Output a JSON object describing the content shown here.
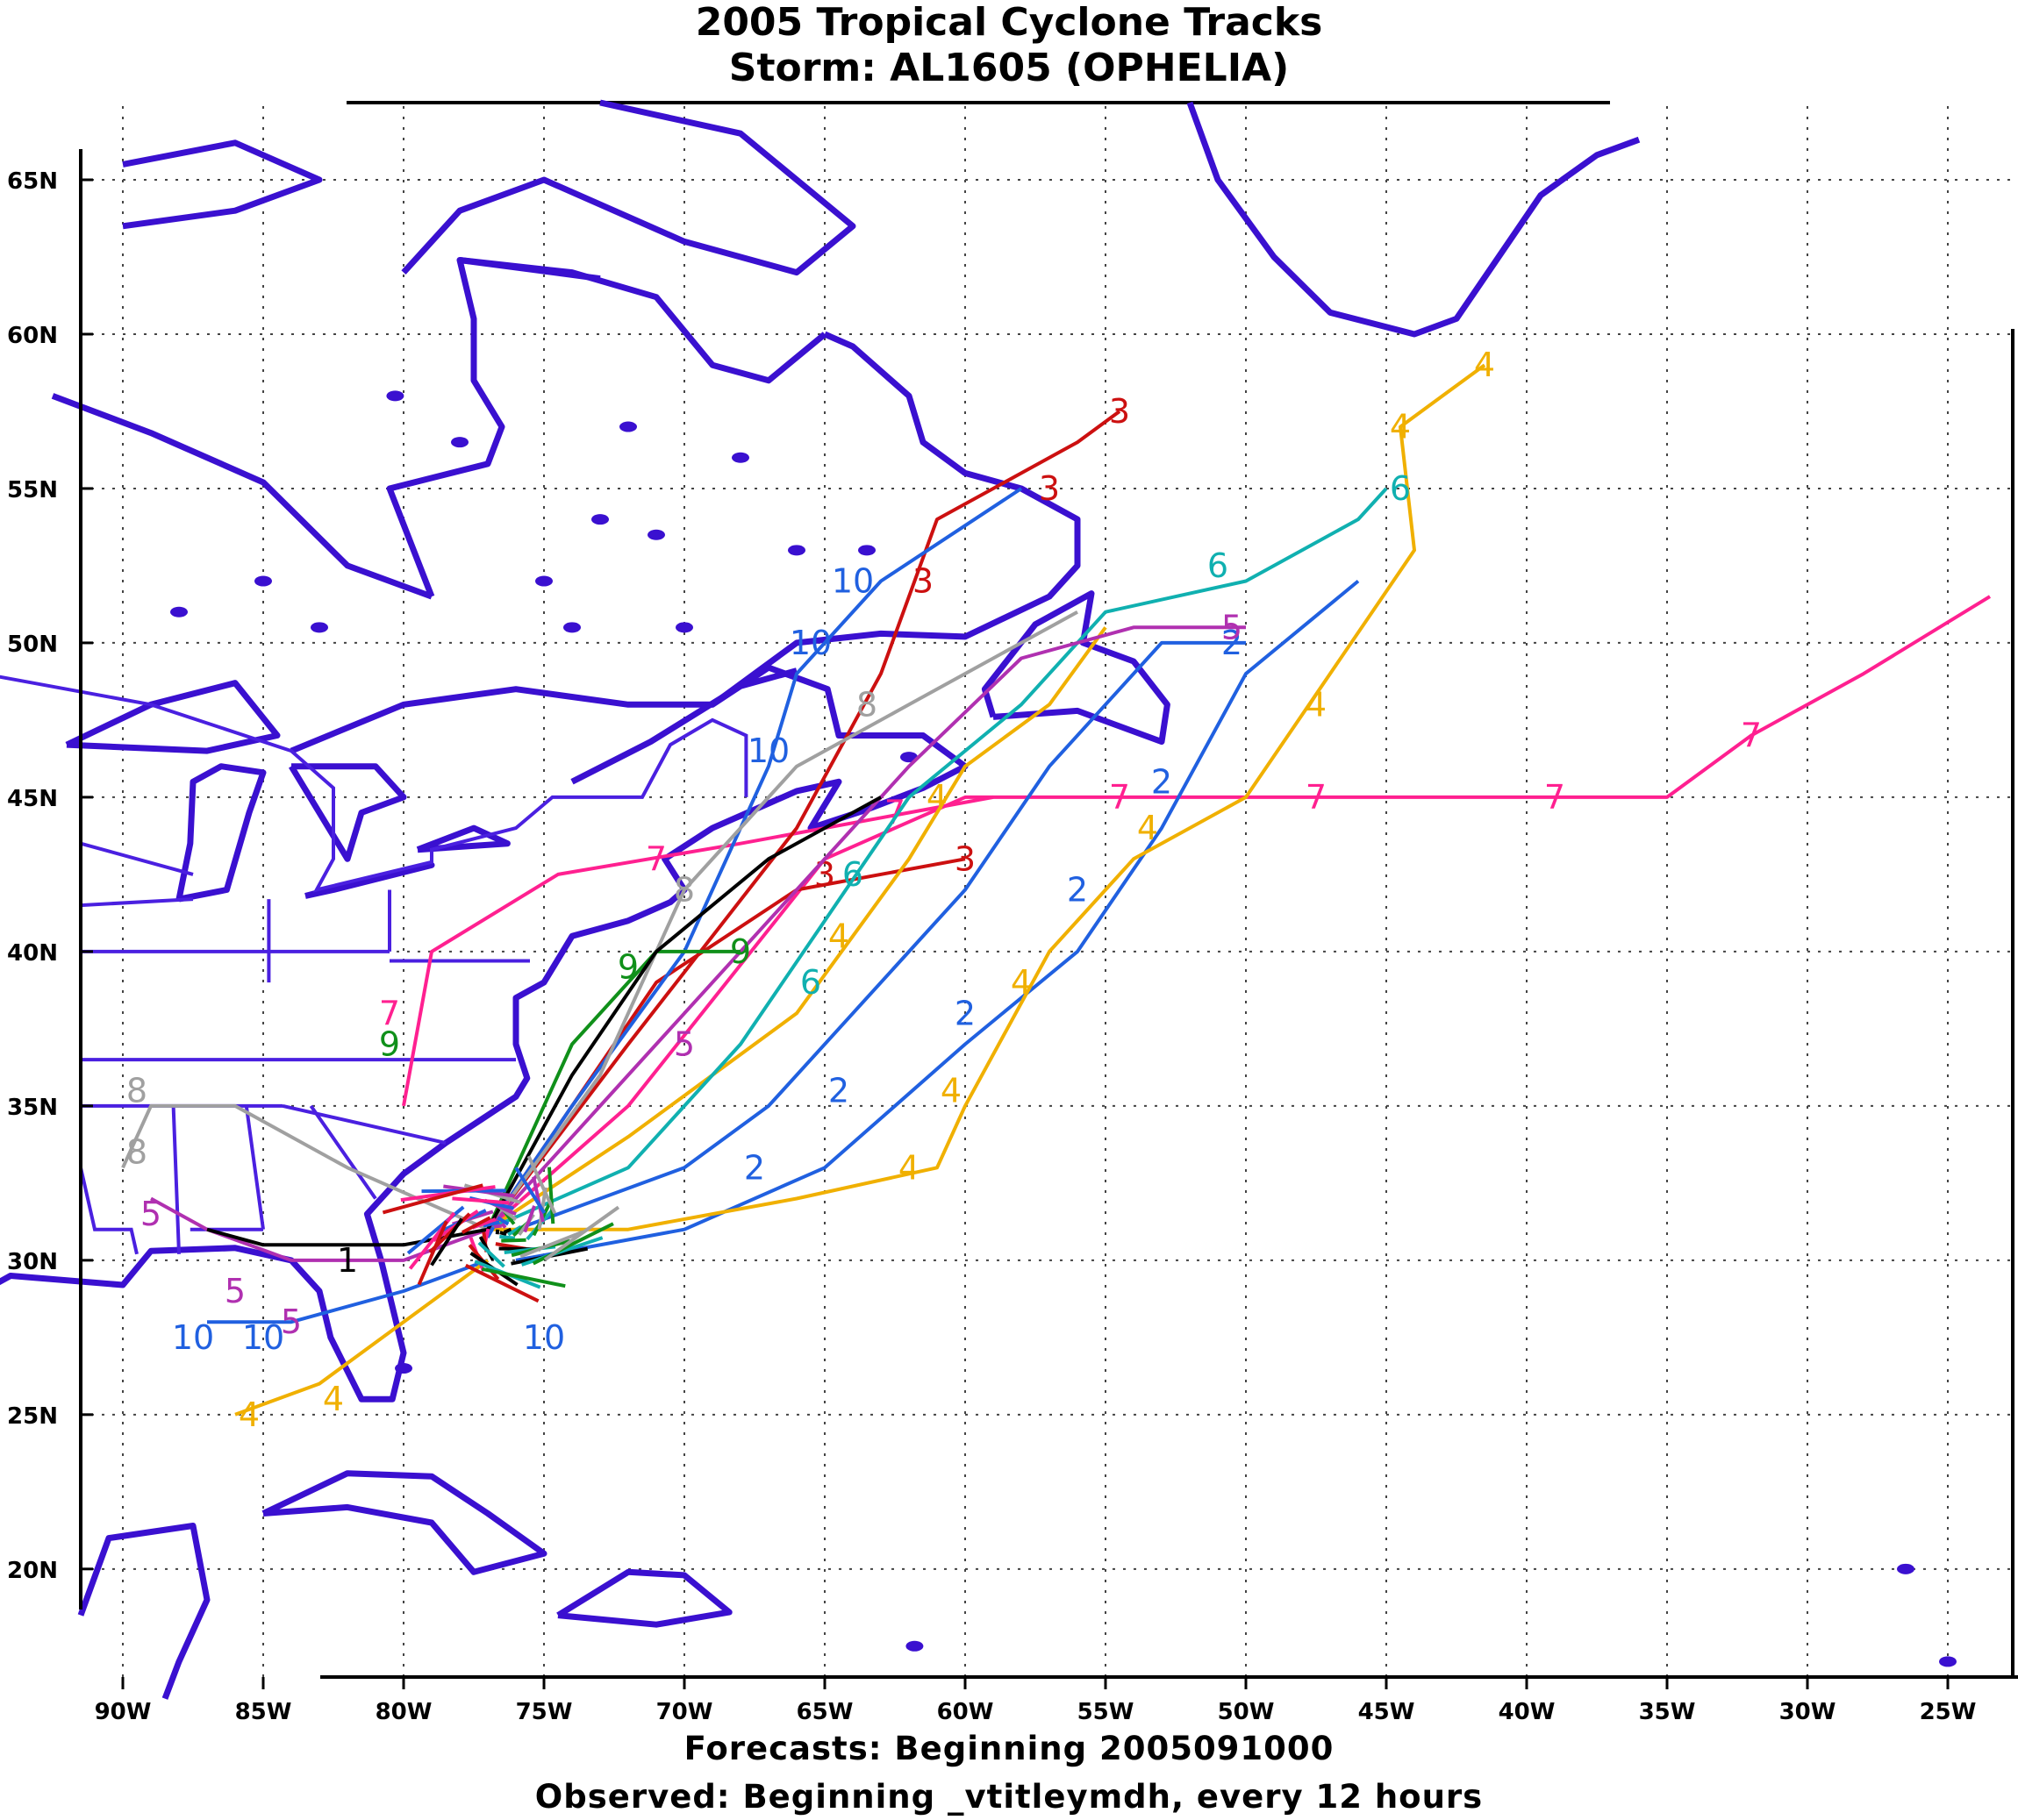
{
  "title": {
    "line1": "2005 Tropical Cyclone Tracks",
    "line2": "Storm: AL1605 (OPHELIA)"
  },
  "footer": {
    "forecasts": "Forecasts: Beginning 2005091000",
    "observed": "Observed: Beginning _vtitleymdh, every 12 hours"
  },
  "map": {
    "lon_range": [
      -91.5,
      -22.5
    ],
    "lat_range": [
      16.5,
      67.5
    ],
    "lon_ticks": [
      {
        "value": -90,
        "label": "90W"
      },
      {
        "value": -85,
        "label": "85W"
      },
      {
        "value": -80,
        "label": "80W"
      },
      {
        "value": -75,
        "label": "75W"
      },
      {
        "value": -70,
        "label": "70W"
      },
      {
        "value": -65,
        "label": "65W"
      },
      {
        "value": -60,
        "label": "60W"
      },
      {
        "value": -55,
        "label": "55W"
      },
      {
        "value": -50,
        "label": "50W"
      },
      {
        "value": -45,
        "label": "45W"
      },
      {
        "value": -40,
        "label": "40W"
      },
      {
        "value": -35,
        "label": "35W"
      },
      {
        "value": -30,
        "label": "30W"
      },
      {
        "value": -25,
        "label": "25W"
      }
    ],
    "lat_ticks": [
      {
        "value": 65,
        "label": "65N"
      },
      {
        "value": 60,
        "label": "60N"
      },
      {
        "value": 55,
        "label": "55N"
      },
      {
        "value": 50,
        "label": "50N"
      },
      {
        "value": 45,
        "label": "45N"
      },
      {
        "value": 40,
        "label": "40N"
      },
      {
        "value": 35,
        "label": "35N"
      },
      {
        "value": 30,
        "label": "30N"
      },
      {
        "value": 25,
        "label": "25N"
      },
      {
        "value": 20,
        "label": "20N"
      }
    ],
    "coast_color": "#3a10d0",
    "grid": "dotted"
  },
  "chart_data": {
    "type": "line",
    "title": "2005 Tropical Cyclone Tracks",
    "subtitle": "Storm: AL1605 (OPHELIA)",
    "x_axis": "longitude",
    "y_axis": "latitude",
    "series": [
      {
        "name": "7",
        "color": "#ff2090",
        "points": [
          [
            -77,
            31
          ],
          [
            -72,
            35
          ],
          [
            -65,
            43
          ],
          [
            -60,
            45
          ],
          [
            -52,
            45
          ],
          [
            -40,
            45
          ],
          [
            -35,
            45
          ],
          [
            -32,
            47
          ],
          [
            -28,
            49
          ],
          [
            -23.5,
            51.5
          ]
        ],
        "labels": [
          [
            -54.5,
            45
          ],
          [
            -47.5,
            45
          ],
          [
            -39,
            45
          ],
          [
            -32,
            47
          ]
        ]
      },
      {
        "name": "7",
        "color": "#ff2090",
        "points": [
          [
            -80,
            35
          ],
          [
            -79,
            40
          ],
          [
            -74.5,
            42.5
          ],
          [
            -68,
            43.5
          ],
          [
            -62,
            44.5
          ],
          [
            -59,
            45
          ]
        ],
        "labels": [
          [
            -80.5,
            38
          ],
          [
            -71,
            43
          ],
          [
            -62.5,
            44.5
          ]
        ]
      },
      {
        "name": "3",
        "color": "#cc1010",
        "points": [
          [
            -77,
            31
          ],
          [
            -72,
            37
          ],
          [
            -66,
            44
          ],
          [
            -63,
            49
          ],
          [
            -61,
            54
          ],
          [
            -58,
            55.5
          ],
          [
            -56,
            56.5
          ],
          [
            -54.5,
            57.5
          ]
        ],
        "labels": [
          [
            -54.5,
            57.5
          ],
          [
            -57,
            55
          ],
          [
            -61.5,
            52
          ]
        ]
      },
      {
        "name": "3",
        "color": "#cc1010",
        "points": [
          [
            -77,
            31
          ],
          [
            -71,
            39
          ],
          [
            -66,
            42
          ],
          [
            -60,
            43
          ]
        ],
        "labels": [
          [
            -60,
            43
          ],
          [
            -65,
            42.5
          ]
        ]
      },
      {
        "name": "2",
        "color": "#2060e0",
        "points": [
          [
            -76,
            30
          ],
          [
            -70,
            31
          ],
          [
            -65,
            33
          ],
          [
            -60,
            37
          ],
          [
            -56,
            40
          ],
          [
            -53,
            44
          ],
          [
            -50,
            49
          ],
          [
            -46,
            52
          ]
        ],
        "labels": [
          [
            -60,
            38
          ],
          [
            -56,
            42
          ],
          [
            -53,
            45.5
          ],
          [
            -50.5,
            50
          ]
        ]
      },
      {
        "name": "2",
        "color": "#2060e0",
        "points": [
          [
            -76,
            31
          ],
          [
            -70,
            33
          ],
          [
            -67,
            35
          ],
          [
            -64,
            38
          ],
          [
            -60,
            42
          ],
          [
            -57,
            46
          ],
          [
            -53,
            50
          ],
          [
            -50,
            50
          ]
        ],
        "labels": [
          [
            -64.5,
            35.5
          ],
          [
            -67.5,
            33
          ]
        ]
      },
      {
        "name": "10",
        "color": "#2060e0",
        "points": [
          [
            -77,
            31
          ],
          [
            -74,
            35
          ],
          [
            -70,
            40
          ],
          [
            -67,
            46
          ],
          [
            -66,
            49
          ],
          [
            -63,
            52
          ],
          [
            -58,
            55
          ]
        ],
        "labels": [
          [
            -64,
            52
          ],
          [
            -65.5,
            50
          ],
          [
            -67,
            46.5
          ]
        ]
      },
      {
        "name": "10",
        "color": "#2060e0",
        "points": [
          [
            -77,
            30
          ],
          [
            -80,
            29
          ],
          [
            -84,
            28
          ],
          [
            -87,
            28
          ]
        ],
        "labels": [
          [
            -87.5,
            27.5
          ],
          [
            -85,
            27.5
          ],
          [
            -75,
            27.5
          ]
        ]
      },
      {
        "name": "4",
        "color": "#f0b000",
        "points": [
          [
            -77,
            31
          ],
          [
            -72,
            31
          ],
          [
            -66,
            32
          ],
          [
            -61,
            33
          ],
          [
            -60,
            35
          ],
          [
            -57,
            40
          ],
          [
            -54,
            43
          ],
          [
            -50,
            45
          ],
          [
            -47,
            49
          ],
          [
            -44,
            53
          ],
          [
            -44.5,
            57
          ],
          [
            -43,
            58
          ],
          [
            -41.5,
            59
          ]
        ],
        "labels": [
          [
            -41.5,
            59
          ],
          [
            -44.5,
            57
          ],
          [
            -47.5,
            48
          ],
          [
            -53.5,
            44
          ],
          [
            -58,
            39
          ],
          [
            -60.5,
            35.5
          ],
          [
            -62,
            33
          ]
        ]
      },
      {
        "name": "4",
        "color": "#f0b000",
        "points": [
          [
            -77,
            30
          ],
          [
            -80,
            28
          ],
          [
            -83,
            26
          ],
          [
            -86,
            25
          ]
        ],
        "labels": [
          [
            -85.5,
            25
          ],
          [
            -82.5,
            25.5
          ]
        ]
      },
      {
        "name": "4",
        "color": "#f0b000",
        "points": [
          [
            -77,
            31
          ],
          [
            -72,
            34
          ],
          [
            -66,
            38
          ],
          [
            -62,
            43
          ],
          [
            -60,
            46
          ],
          [
            -57,
            48
          ],
          [
            -55,
            50.5
          ]
        ],
        "labels": [
          [
            -64.5,
            40.5
          ],
          [
            -61,
            45
          ]
        ]
      },
      {
        "name": "6",
        "color": "#10b0b0",
        "points": [
          [
            -77,
            31
          ],
          [
            -72,
            33
          ],
          [
            -68,
            37
          ],
          [
            -65,
            41
          ],
          [
            -62,
            45
          ],
          [
            -58,
            48
          ],
          [
            -55,
            51
          ],
          [
            -50,
            52
          ],
          [
            -46,
            54
          ],
          [
            -45,
            55
          ]
        ],
        "labels": [
          [
            -44.5,
            55
          ],
          [
            -51,
            52.5
          ],
          [
            -64,
            42.5
          ],
          [
            -65.5,
            39
          ]
        ]
      },
      {
        "name": "8",
        "color": "#a0a0a0",
        "points": [
          [
            -77,
            31
          ],
          [
            -73,
            36
          ],
          [
            -70,
            42
          ],
          [
            -66,
            46
          ],
          [
            -62,
            48
          ],
          [
            -58,
            50
          ],
          [
            -56,
            51
          ]
        ],
        "labels": [
          [
            -70,
            42
          ],
          [
            -63.5,
            48
          ]
        ]
      },
      {
        "name": "8",
        "color": "#a0a0a0",
        "points": [
          [
            -77,
            31
          ],
          [
            -82,
            33
          ],
          [
            -86,
            35
          ],
          [
            -89,
            35
          ],
          [
            -90,
            33
          ]
        ],
        "labels": [
          [
            -89.5,
            35.5
          ],
          [
            -89.5,
            33.5
          ]
        ]
      },
      {
        "name": "5",
        "color": "#b030b0",
        "points": [
          [
            -77,
            31
          ],
          [
            -80,
            30
          ],
          [
            -84,
            30
          ],
          [
            -87,
            31
          ],
          [
            -89,
            32
          ]
        ],
        "labels": [
          [
            -89,
            31.5
          ],
          [
            -86,
            29
          ],
          [
            -84,
            28
          ]
        ]
      },
      {
        "name": "5",
        "color": "#b030b0",
        "points": [
          [
            -77,
            31
          ],
          [
            -73,
            35
          ],
          [
            -70,
            38
          ],
          [
            -66,
            42
          ],
          [
            -62,
            46
          ],
          [
            -58,
            49.5
          ],
          [
            -54,
            50.5
          ],
          [
            -50,
            50.5
          ]
        ],
        "labels": [
          [
            -50.5,
            50.5
          ],
          [
            -70,
            37
          ]
        ]
      },
      {
        "name": "9",
        "color": "#10901a",
        "points": [
          [
            -77,
            31
          ],
          [
            -74,
            37
          ],
          [
            -71,
            40
          ],
          [
            -68,
            40
          ]
        ],
        "labels": [
          [
            -68,
            40
          ],
          [
            -72,
            39.5
          ],
          [
            -80.5,
            37
          ]
        ]
      },
      {
        "name": "1",
        "color": "#000000",
        "points": [
          [
            -77,
            31
          ],
          [
            -80,
            30.5
          ],
          [
            -85,
            30.5
          ],
          [
            -87,
            31
          ]
        ],
        "labels": [
          [
            -82,
            30
          ]
        ]
      },
      {
        "name": "1",
        "color": "#000000",
        "points": [
          [
            -77,
            31
          ],
          [
            -74,
            36
          ],
          [
            -71,
            40
          ],
          [
            -67,
            43
          ],
          [
            -63,
            45
          ]
        ],
        "labels": []
      }
    ],
    "label_text": {
      "7": "7",
      "3": "3",
      "2": "2",
      "10": "10",
      "4": "4",
      "6": "6",
      "8": "8",
      "5": "5",
      "9": "9",
      "1": "1"
    }
  }
}
